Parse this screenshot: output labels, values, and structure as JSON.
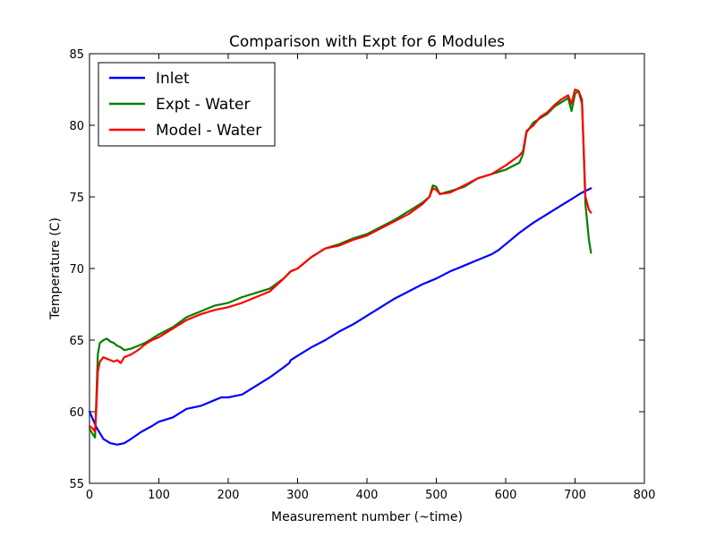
{
  "chart_data": {
    "type": "line",
    "title": "Comparison with Expt for 6 Modules",
    "xlabel": "Measurement number (~time)",
    "ylabel": "Temperature (C)",
    "xlim": [
      0,
      800
    ],
    "ylim": [
      55,
      85
    ],
    "xticks": [
      "0",
      "100",
      "200",
      "300",
      "400",
      "500",
      "600",
      "700",
      "800"
    ],
    "yticks": [
      "55",
      "60",
      "65",
      "70",
      "75",
      "80",
      "85"
    ],
    "grid": false,
    "legend": "top-left",
    "series": [
      {
        "name": "Inlet",
        "color": "#0000ff",
        "x": [
          0,
          10,
          20,
          30,
          40,
          50,
          60,
          75,
          90,
          100,
          120,
          140,
          160,
          180,
          190,
          200,
          220,
          240,
          260,
          280,
          288,
          290,
          300,
          320,
          340,
          360,
          380,
          400,
          420,
          440,
          460,
          480,
          500,
          520,
          540,
          560,
          580,
          590,
          600,
          620,
          640,
          660,
          680,
          700,
          710,
          723
        ],
        "y": [
          60.0,
          58.9,
          58.1,
          57.8,
          57.7,
          57.8,
          58.1,
          58.6,
          59.0,
          59.3,
          59.6,
          60.2,
          60.4,
          60.8,
          61.0,
          61.0,
          61.2,
          61.8,
          62.4,
          63.1,
          63.4,
          63.6,
          63.9,
          64.5,
          65.0,
          65.6,
          66.1,
          66.7,
          67.3,
          67.9,
          68.4,
          68.9,
          69.3,
          69.8,
          70.2,
          70.6,
          71.0,
          71.3,
          71.7,
          72.5,
          73.2,
          73.8,
          74.4,
          75.0,
          75.3,
          75.6
        ]
      },
      {
        "name": "Expt - Water",
        "color": "#008000",
        "x": [
          0,
          5,
          8,
          12,
          15,
          20,
          25,
          30,
          35,
          40,
          45,
          50,
          60,
          70,
          80,
          90,
          100,
          120,
          140,
          160,
          180,
          200,
          220,
          240,
          260,
          280,
          290,
          300,
          320,
          340,
          360,
          380,
          400,
          420,
          440,
          460,
          480,
          490,
          495,
          500,
          505,
          520,
          540,
          560,
          580,
          600,
          620,
          625,
          630,
          640,
          650,
          660,
          670,
          680,
          690,
          695,
          700,
          705,
          710,
          715,
          720,
          723
        ],
        "y": [
          58.8,
          58.4,
          58.2,
          64.0,
          64.8,
          65.0,
          65.1,
          64.9,
          64.8,
          64.6,
          64.5,
          64.3,
          64.4,
          64.6,
          64.8,
          65.1,
          65.4,
          65.9,
          66.6,
          67.0,
          67.4,
          67.6,
          68.0,
          68.3,
          68.6,
          69.3,
          69.8,
          70.0,
          70.8,
          71.4,
          71.7,
          72.1,
          72.4,
          72.9,
          73.4,
          74.0,
          74.6,
          75.0,
          75.8,
          75.7,
          75.2,
          75.4,
          75.7,
          76.3,
          76.6,
          76.9,
          77.4,
          78.0,
          79.5,
          80.2,
          80.5,
          80.8,
          81.3,
          81.6,
          81.9,
          81.0,
          82.2,
          82.4,
          81.8,
          74.5,
          72.0,
          71.1
        ]
      },
      {
        "name": "Model - Water",
        "color": "#ff0000",
        "x": [
          0,
          5,
          8,
          10,
          12,
          15,
          20,
          25,
          30,
          35,
          40,
          45,
          50,
          60,
          70,
          80,
          90,
          100,
          120,
          140,
          160,
          180,
          200,
          220,
          240,
          260,
          280,
          290,
          300,
          320,
          340,
          360,
          380,
          400,
          420,
          440,
          460,
          480,
          490,
          495,
          500,
          505,
          520,
          540,
          560,
          580,
          600,
          620,
          625,
          630,
          640,
          650,
          660,
          670,
          680,
          690,
          695,
          700,
          705,
          710,
          715,
          720,
          723
        ],
        "y": [
          59.0,
          58.8,
          58.6,
          60.5,
          62.8,
          63.5,
          63.8,
          63.7,
          63.6,
          63.5,
          63.6,
          63.4,
          63.8,
          64.0,
          64.3,
          64.7,
          65.0,
          65.2,
          65.8,
          66.4,
          66.8,
          67.1,
          67.3,
          67.6,
          68.0,
          68.4,
          69.3,
          69.8,
          70.0,
          70.8,
          71.4,
          71.6,
          72.0,
          72.3,
          72.8,
          73.3,
          73.8,
          74.5,
          75.0,
          75.6,
          75.5,
          75.2,
          75.3,
          75.8,
          76.3,
          76.6,
          77.2,
          77.9,
          78.2,
          79.6,
          80.0,
          80.6,
          80.9,
          81.4,
          81.8,
          82.1,
          81.5,
          82.5,
          82.4,
          81.5,
          75.0,
          74.1,
          73.9
        ]
      }
    ]
  }
}
